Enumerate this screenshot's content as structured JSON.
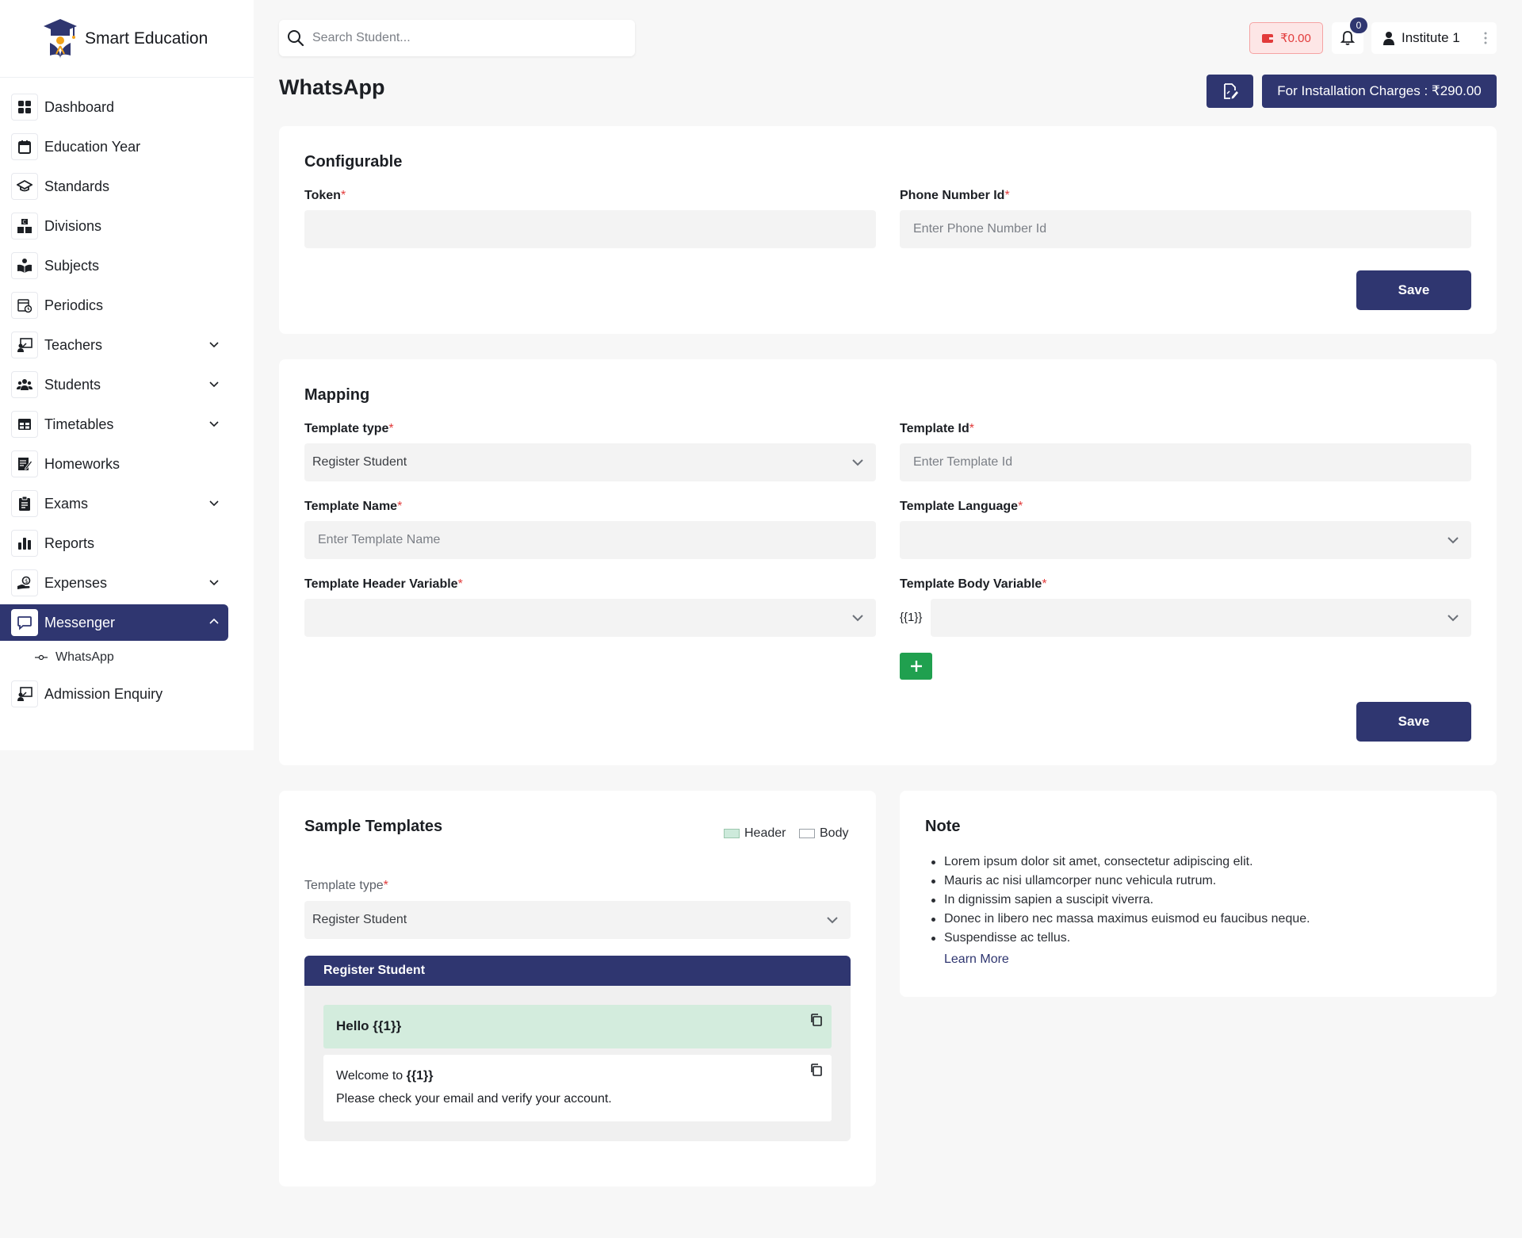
{
  "brand": {
    "title": "Smart Education"
  },
  "sidebar": {
    "items": [
      {
        "label": "Dashboard",
        "icon": "dashboard-icon"
      },
      {
        "label": "Education Year",
        "icon": "calendar-icon"
      },
      {
        "label": "Standards",
        "icon": "graduation-cap-icon"
      },
      {
        "label": "Divisions",
        "icon": "divisions-icon"
      },
      {
        "label": "Subjects",
        "icon": "book-reader-icon"
      },
      {
        "label": "Periodics",
        "icon": "calendar-clock-icon"
      },
      {
        "label": "Teachers",
        "icon": "teacher-board-icon"
      },
      {
        "label": "Students",
        "icon": "users-icon"
      },
      {
        "label": "Timetables",
        "icon": "table-icon"
      },
      {
        "label": "Homeworks",
        "icon": "homework-icon"
      },
      {
        "label": "Exams",
        "icon": "clipboard-icon"
      },
      {
        "label": "Reports",
        "icon": "bar-chart-icon"
      },
      {
        "label": "Expenses",
        "icon": "money-hand-icon"
      },
      {
        "label": "Messenger",
        "icon": "message-icon"
      },
      {
        "label": "Admission Enquiry",
        "icon": "enquiry-board-icon"
      }
    ],
    "sub_items": [
      {
        "label": "WhatsApp"
      }
    ]
  },
  "topbar": {
    "search_placeholder": "Search Student...",
    "wallet_amount": "₹0.00",
    "notification_count": "0",
    "user_name": "Institute 1"
  },
  "page": {
    "title": "WhatsApp",
    "install_button": "For Installation Charges : ₹290.00"
  },
  "configurable": {
    "title": "Configurable",
    "token_label": "Token",
    "token_value": "",
    "phone_label": "Phone Number Id",
    "phone_placeholder": "Enter Phone Number Id",
    "save_label": "Save"
  },
  "mapping": {
    "title": "Mapping",
    "template_type_label": "Template type",
    "template_type_value": "Register Student",
    "template_id_label": "Template Id",
    "template_id_placeholder": "Enter Template Id",
    "template_name_label": "Template Name",
    "template_name_placeholder": "Enter Template Name",
    "template_language_label": "Template Language",
    "template_language_value": "",
    "header_variable_label": "Template Header Variable",
    "header_variable_value": "",
    "body_variable_label": "Template Body Variable",
    "body_variable_prefix": "{{1}}",
    "body_variable_value": "",
    "save_label": "Save"
  },
  "samples": {
    "title": "Sample Templates",
    "legend_header": "Header",
    "legend_body": "Body",
    "template_type_label": "Template type",
    "template_type_value": "Register Student",
    "panel_title": "Register Student",
    "header_text": "Hello {{1}}",
    "body_line1_prefix": "Welcome to ",
    "body_line1_var": "{{1}}",
    "body_line2": "Please check your email and verify your account."
  },
  "note": {
    "title": "Note",
    "items": [
      "Lorem ipsum dolor sit amet, consectetur adipiscing elit.",
      "Mauris ac nisi ullamcorper nunc vehicula rutrum.",
      "In dignissim sapien a suscipit viverra.",
      "Donec in libero nec massa maximus euismod eu faucibus neque.",
      "Suspendisse ac tellus."
    ],
    "learn_more": "Learn More"
  },
  "colors": {
    "primary": "#2f3670",
    "danger": "#e23b3b",
    "success": "#20a04f",
    "header_highlight": "#d3ecdd"
  }
}
